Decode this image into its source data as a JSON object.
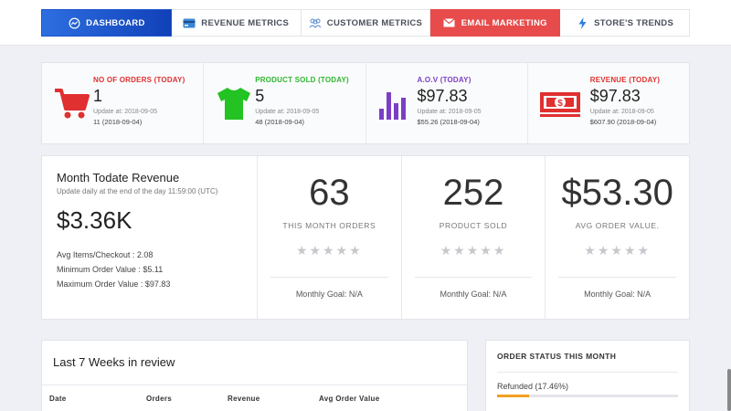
{
  "tabs": [
    {
      "label": "Dashboard",
      "icon": "gauge-icon"
    },
    {
      "label": "Revenue Metrics",
      "icon": "credit-card-icon"
    },
    {
      "label": "Customer Metrics",
      "icon": "users-icon"
    },
    {
      "label": "Email Marketing",
      "icon": "envelope-icon"
    },
    {
      "label": "Store's Trends",
      "icon": "bolt-icon"
    }
  ],
  "stats": [
    {
      "label": "No of Orders (Today)",
      "value": "1",
      "updated": "Update at: 2018-09-05",
      "previous": "11 (2018-09-04)",
      "color": "#e03030",
      "icon": "shopping-cart-icon"
    },
    {
      "label": "Product Sold (Today)",
      "value": "5",
      "updated": "Update at: 2018-09-05",
      "previous": "48 (2018-09-04)",
      "color": "#2fb82f",
      "icon": "t-shirt-icon"
    },
    {
      "label": "A.O.V (Today)",
      "value": "$97.83",
      "updated": "Update at: 2018-09-05",
      "previous": "$55.26 (2018-09-04)",
      "color": "#7b3fc4",
      "icon": "bar-chart-icon"
    },
    {
      "label": "Revenue (Today)",
      "value": "$97.83",
      "updated": "Update at: 2018-09-05",
      "previous": "$607.90 (2018-09-04)",
      "color": "#e03030",
      "icon": "money-bill-icon"
    }
  ],
  "revenue": {
    "title": "Month Todate Revenue",
    "subtitle": "Update daily at the end of the day 11:59:00 (UTC)",
    "amount": "$3.36K",
    "avg_items": "Avg Items/Checkout : 2.08",
    "min_order": "Minimum Order Value : $5.11",
    "max_order": "Maximum Order Value : $97.83"
  },
  "metrics": [
    {
      "value": "63",
      "caption": "This Month Orders",
      "stars": "★★★★★",
      "goal": "Monthly Goal: N/A"
    },
    {
      "value": "252",
      "caption": "Product Sold",
      "stars": "★★★★★",
      "goal": "Monthly Goal: N/A"
    },
    {
      "value": "$53.30",
      "caption": "Avg Order Value.",
      "stars": "★★★★★",
      "goal": "Monthly Goal: N/A"
    }
  ],
  "weeks": {
    "title": "Last 7 Weeks in review",
    "columns": [
      "Date",
      "Orders",
      "Revenue",
      "Avg Order Value"
    ]
  },
  "order_status": {
    "title": "Order Status This Month",
    "items": [
      {
        "label": "Refunded (17.46%)",
        "percent": 17.46,
        "color": "#f0a020"
      }
    ]
  }
}
